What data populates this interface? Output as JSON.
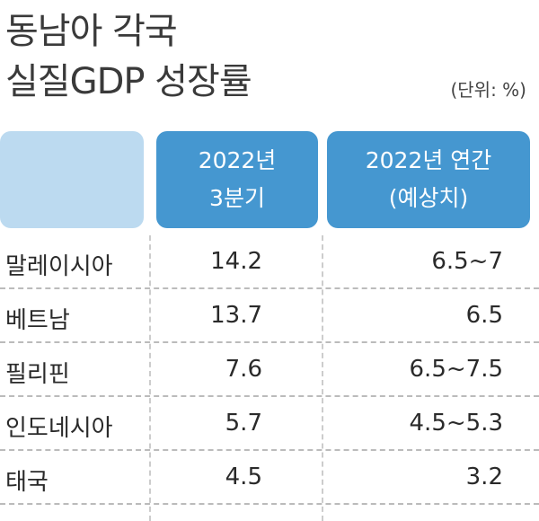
{
  "header": {
    "title": [
      "동남아 각국",
      "실질GDP 성장률"
    ],
    "unit": "(단위: %)"
  },
  "table": {
    "columns": [
      [
        "2022년",
        "3분기"
      ],
      [
        "2022년 연간",
        "(예상치)"
      ]
    ],
    "rows": [
      [
        "말레이시아",
        14.2,
        "6.5~7"
      ],
      [
        "베트남",
        13.7,
        6.5
      ],
      [
        "필리핀",
        7.6,
        "6.5~7.5"
      ],
      [
        "인도네시아",
        5.7,
        "4.5~5.3"
      ],
      [
        "태국",
        4.5,
        3.2
      ]
    ]
  }
}
